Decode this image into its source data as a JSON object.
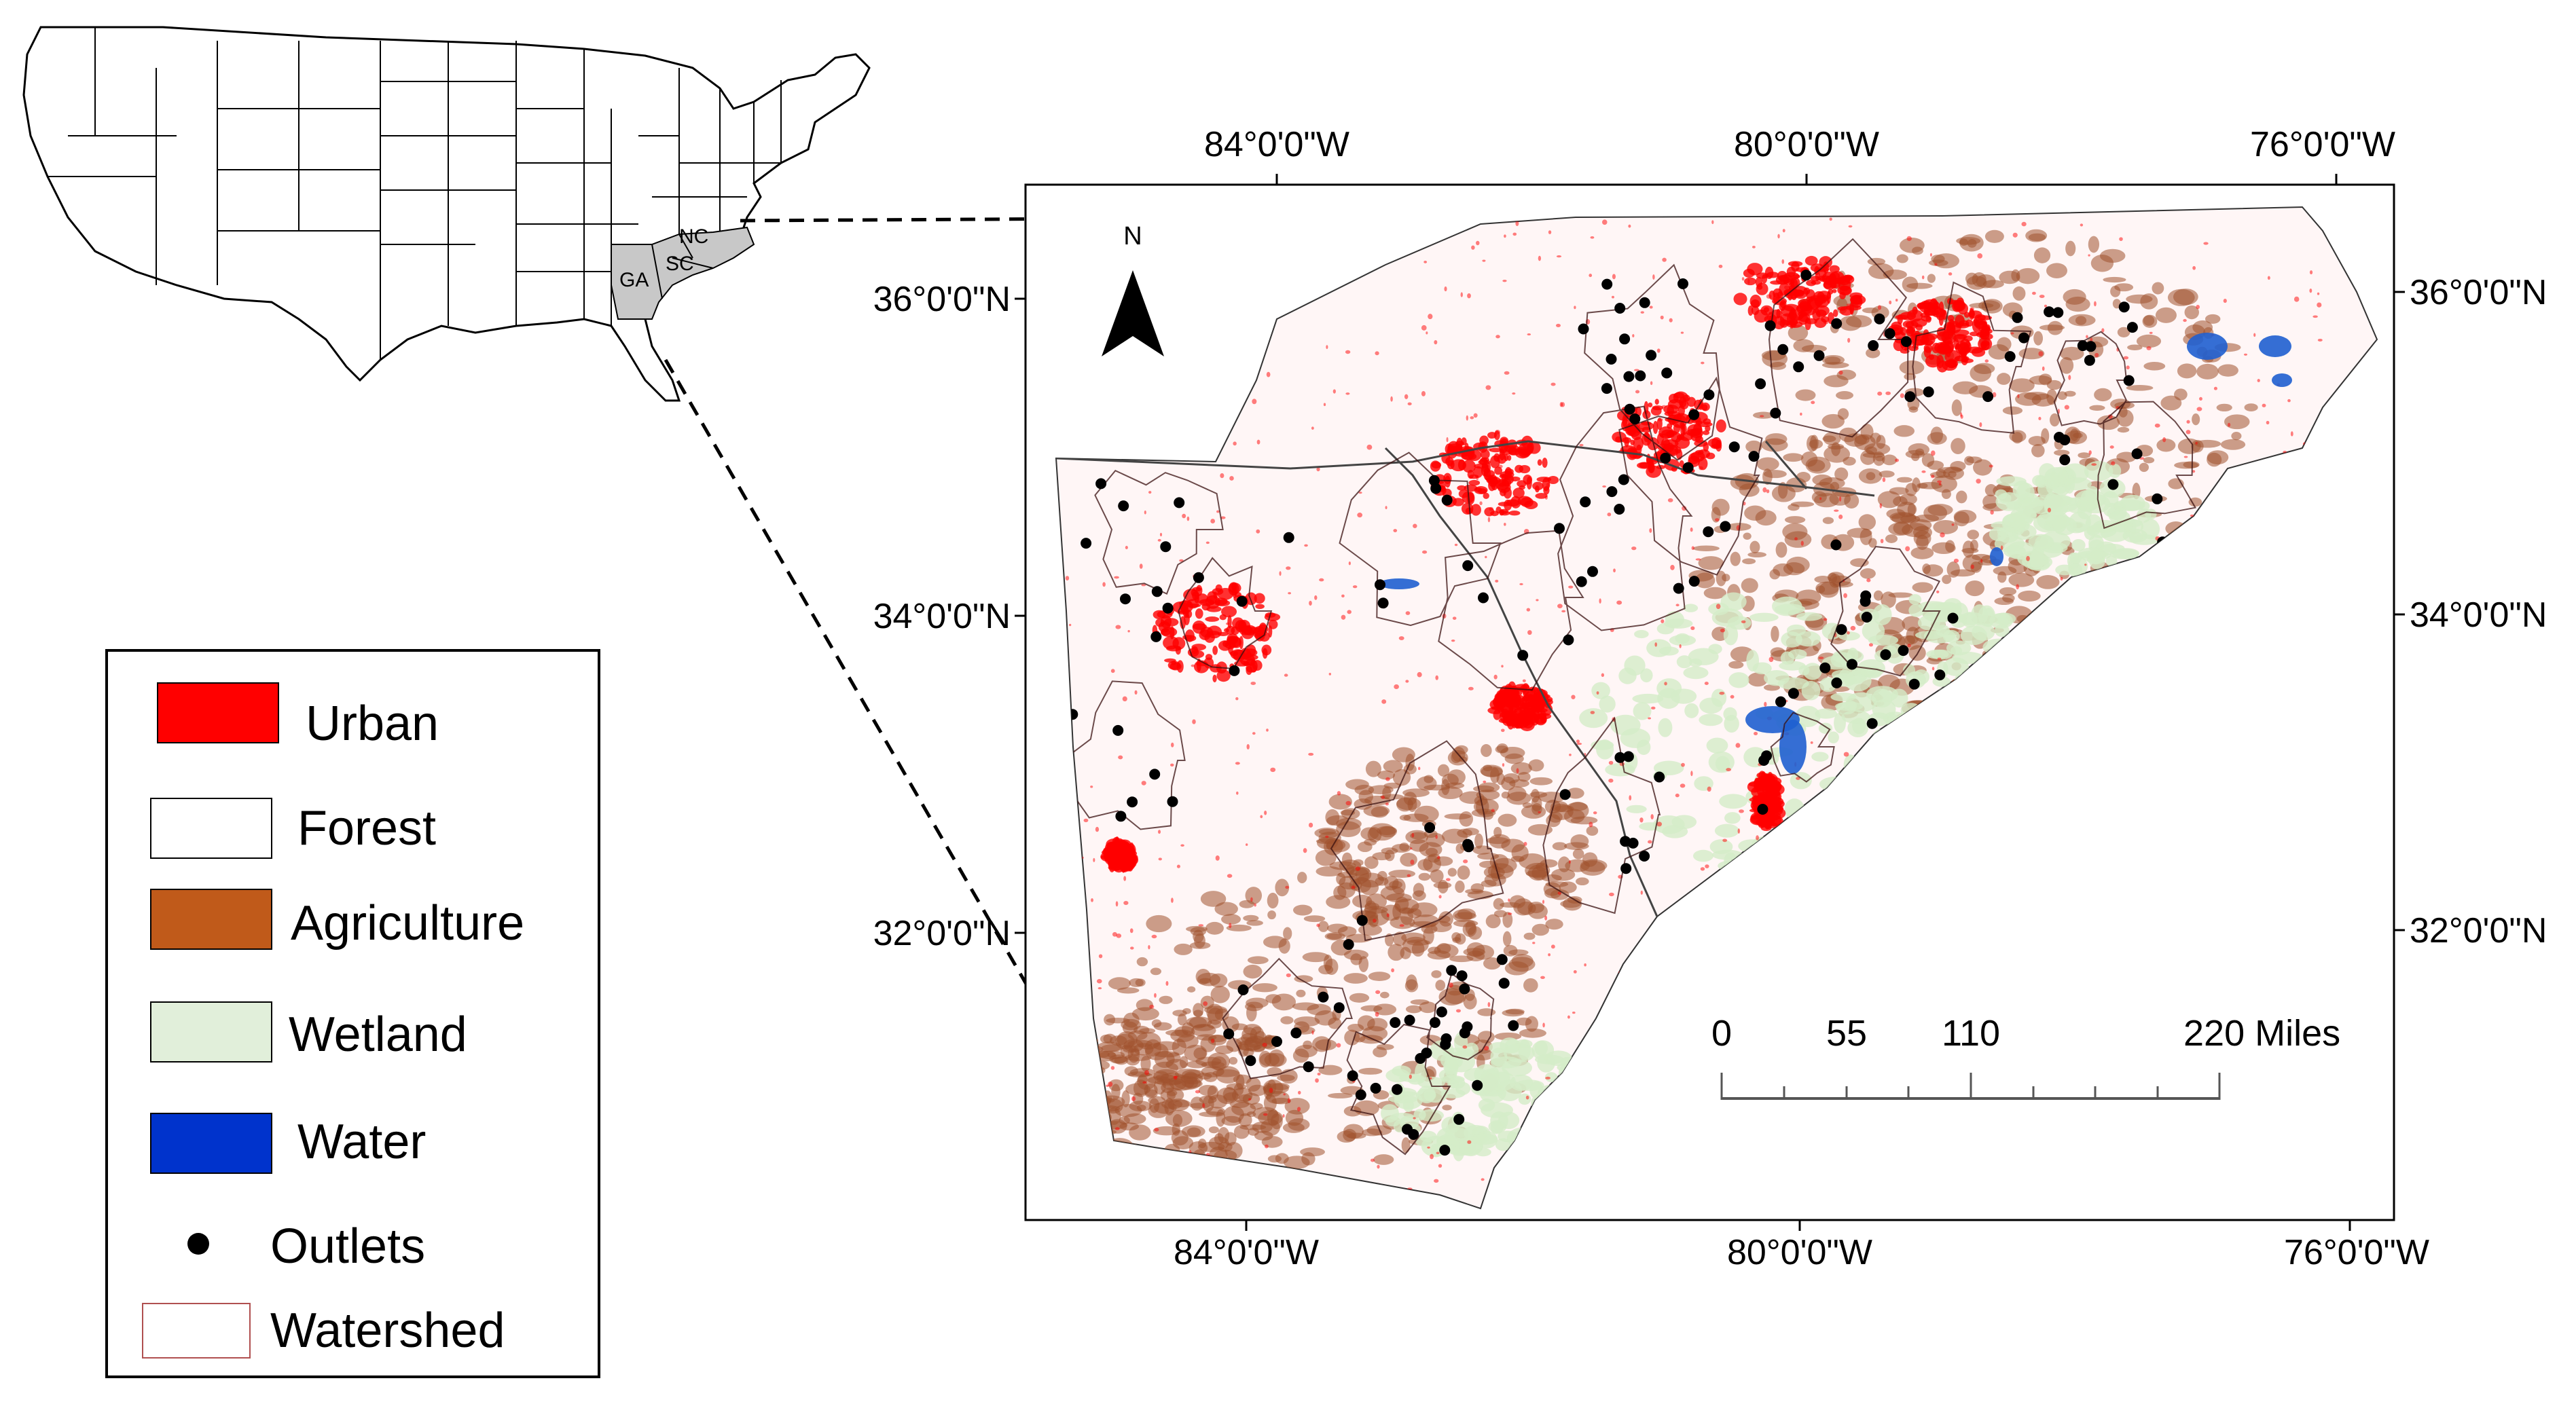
{
  "inset": {
    "state_labels": [
      "GA",
      "SC",
      "NC"
    ]
  },
  "map": {
    "north_label": "N",
    "lon_labels": [
      "84°0'0\"W",
      "80°0'0\"W",
      "76°0'0\"W"
    ],
    "lat_labels": [
      "36°0'0\"N",
      "34°0'0\"N",
      "32°0'0\"N"
    ]
  },
  "scale_bar": {
    "ticks": [
      "0",
      "55",
      "110",
      "220 Miles"
    ]
  },
  "legend": {
    "items": [
      {
        "label": "Urban",
        "color": "#ff0000",
        "type": "box"
      },
      {
        "label": "Forest",
        "color": "#ffffff",
        "type": "box"
      },
      {
        "label": "Agriculture",
        "color": "#c05a1a",
        "type": "box"
      },
      {
        "label": "Wetland",
        "color": "#e1efda",
        "type": "box"
      },
      {
        "label": "Water",
        "color": "#0033cc",
        "type": "box"
      },
      {
        "label": "Outlets",
        "color": "#000000",
        "type": "dot"
      },
      {
        "label": "Watershed",
        "color": "#ffffff",
        "border": "#b05050",
        "type": "box"
      }
    ]
  },
  "colors": {
    "urban": "#ff0000",
    "agriculture": "#a0522d",
    "wetland": "#d5ecc8",
    "water": "#1f5fd0",
    "highlight_states": "#c8c8c8"
  }
}
